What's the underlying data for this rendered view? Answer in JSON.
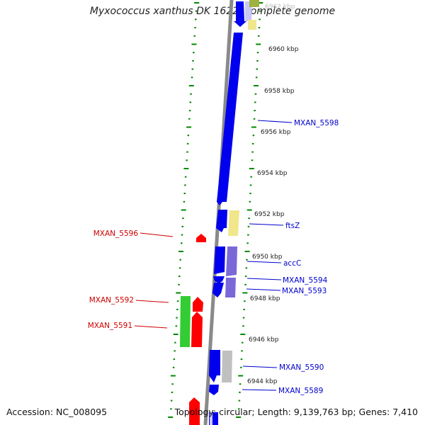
{
  "title": "Myxococcus xanthus DK 1622, complete genome",
  "footer": {
    "accession": "Accession: NC_008095",
    "summary": "Topology: circular; Length: 9,139,763 bp; Genes: 7,410"
  },
  "colors": {
    "forward_cds": "#0000ee",
    "forward_rna_light": "#9b9bee",
    "reverse_cds": "#ff0000",
    "reverse_green": "#33cc33",
    "ruler_green": "#008800",
    "label_blue": "#0000cc",
    "label_red": "#cc0000",
    "backbone": "#8a8a8a",
    "yellow": "#f0e68c",
    "lavender": "#7b68d8",
    "grey": "#c0c0c0"
  },
  "scale_labels": [
    "6962 kbp",
    "6960 kbp",
    "6958 kbp",
    "6956 kbp",
    "6954 kbp",
    "6952 kbp",
    "6950 kbp",
    "6948 kbp",
    "6946 kbp",
    "6944 kbp"
  ],
  "gene_labels_right": [
    "MXAN_5598",
    "ftsZ",
    "accC",
    "MXAN_5594",
    "MXAN_5593",
    "MXAN_5590",
    "MXAN_5589"
  ],
  "gene_labels_left": [
    "MXAN_5596",
    "MXAN_5592",
    "MXAN_5591"
  ]
}
